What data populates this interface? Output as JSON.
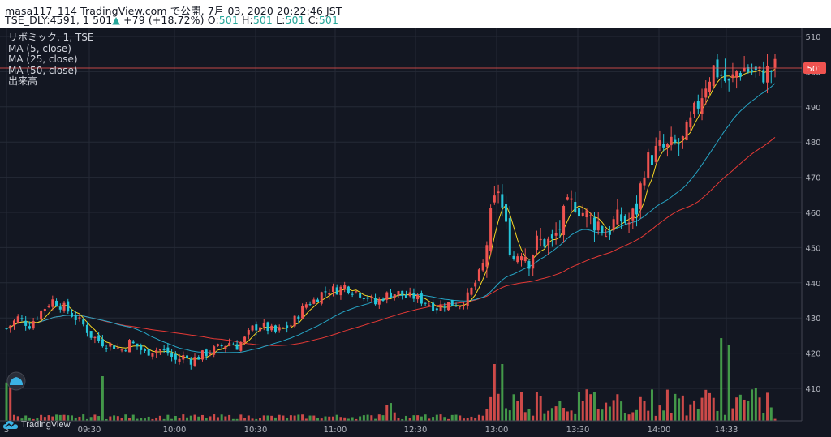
{
  "header": {
    "line1": "masa117_114 TradingView.com で公開, 7月 03, 2020 20:22:46 JST",
    "symbol": "TSE_DLY:4591, 1",
    "last": "501",
    "arrow": "▲",
    "change": "+79 (+18.72%)",
    "o_label": "O:",
    "o": "501",
    "h_label": "H:",
    "h": "501",
    "l_label": "L:",
    "l": "501",
    "c_label": "C:",
    "c": "501"
  },
  "legend": {
    "symbol": "リボミック, 1, TSE",
    "ma5": "MA (5, close)",
    "ma25": "MA (25, close)",
    "ma50": "MA (50, close)",
    "volume": "出来高"
  },
  "price_badge": "501",
  "watermark": "TradingView",
  "chart_data": {
    "type": "candlestick",
    "title": "リボミック, 1, TSE",
    "interval": "1",
    "y_ticks": [
      510,
      500,
      490,
      480,
      470,
      460,
      450,
      440,
      430,
      420,
      410
    ],
    "ylim": [
      407,
      513
    ],
    "x_ticks": [
      "3",
      "09:30",
      "10:00",
      "10:30",
      "11:00",
      "12:30",
      "13:00",
      "13:30",
      "14:00",
      "14:33"
    ],
    "last_price": 501,
    "grid": true,
    "colors": {
      "up": "#ef5350",
      "down": "#26c6da",
      "ma5": "#f5d524",
      "ma25": "#26a4c4",
      "ma50": "#e53935",
      "vol_up": "#ef5350",
      "vol_down": "#4caf50"
    },
    "series": [
      {
        "name": "MA (5, close)"
      },
      {
        "name": "MA (25, close)"
      },
      {
        "name": "MA (50, close)"
      },
      {
        "name": "出来高"
      }
    ],
    "close_path": [
      [
        0,
        427
      ],
      [
        3,
        430
      ],
      [
        6,
        428
      ],
      [
        9,
        432
      ],
      [
        12,
        435
      ],
      [
        15,
        433
      ],
      [
        18,
        430
      ],
      [
        20,
        428
      ],
      [
        22,
        425
      ],
      [
        25,
        423
      ],
      [
        28,
        422
      ],
      [
        30,
        421
      ],
      [
        32,
        423
      ],
      [
        34,
        422
      ],
      [
        36,
        420
      ],
      [
        38,
        421
      ],
      [
        40,
        421
      ],
      [
        42,
        420
      ],
      [
        44,
        418
      ],
      [
        46,
        419
      ],
      [
        48,
        418
      ],
      [
        50,
        419
      ],
      [
        52,
        420
      ],
      [
        54,
        421
      ],
      [
        56,
        422
      ],
      [
        58,
        423
      ],
      [
        60,
        422
      ],
      [
        62,
        424
      ],
      [
        64,
        427
      ],
      [
        66,
        428
      ],
      [
        68,
        427
      ],
      [
        70,
        426
      ],
      [
        72,
        427
      ],
      [
        74,
        428
      ],
      [
        76,
        431
      ],
      [
        78,
        434
      ],
      [
        80,
        435
      ],
      [
        82,
        437
      ],
      [
        84,
        438
      ],
      [
        86,
        438
      ],
      [
        88,
        439
      ],
      [
        90,
        438
      ],
      [
        92,
        437
      ],
      [
        94,
        436
      ],
      [
        96,
        434
      ],
      [
        98,
        436
      ],
      [
        100,
        437
      ],
      [
        102,
        437
      ],
      [
        104,
        436
      ],
      [
        106,
        436
      ],
      [
        108,
        435
      ],
      [
        110,
        434
      ],
      [
        112,
        433
      ],
      [
        114,
        434
      ],
      [
        116,
        434
      ],
      [
        118,
        434
      ],
      [
        120,
        436
      ],
      [
        122,
        440
      ],
      [
        124,
        445
      ],
      [
        126,
        458
      ],
      [
        128,
        467
      ],
      [
        130,
        455
      ],
      [
        132,
        447
      ],
      [
        134,
        450
      ],
      [
        136,
        447
      ],
      [
        138,
        451
      ],
      [
        140,
        452
      ],
      [
        142,
        451
      ],
      [
        144,
        456
      ],
      [
        146,
        461
      ],
      [
        148,
        463
      ],
      [
        150,
        460
      ],
      [
        152,
        458
      ],
      [
        154,
        457
      ],
      [
        156,
        454
      ],
      [
        158,
        457
      ],
      [
        160,
        458
      ],
      [
        162,
        457
      ],
      [
        164,
        461
      ],
      [
        166,
        473
      ],
      [
        168,
        476
      ],
      [
        170,
        478
      ],
      [
        172,
        478
      ],
      [
        174,
        479
      ],
      [
        176,
        480
      ],
      [
        178,
        485
      ],
      [
        180,
        491
      ],
      [
        182,
        497
      ],
      [
        184,
        501
      ],
      [
        186,
        499
      ],
      [
        188,
        496
      ],
      [
        190,
        500
      ],
      [
        192,
        501
      ],
      [
        194,
        500
      ],
      [
        196,
        499
      ],
      [
        198,
        500
      ],
      [
        200,
        501
      ]
    ],
    "note": "x index is bar number from session start (approx.), values are prices in JPY"
  }
}
